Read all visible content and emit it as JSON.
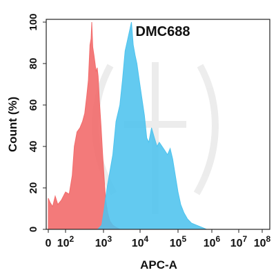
{
  "chart_data": {
    "type": "area",
    "title": "DMC688",
    "xlabel": "APC-A",
    "ylabel": "Count  (%)",
    "x_scale": "biexponential (log-like)",
    "xlim": [
      0,
      100000000
    ],
    "ylim": [
      0,
      100
    ],
    "grid": false,
    "legend": "none",
    "x_tick_labels": [
      {
        "value": 0,
        "base": "0",
        "exp": ""
      },
      {
        "value": 100,
        "base": "10",
        "exp": "2"
      },
      {
        "value": 1000,
        "base": "10",
        "exp": "3"
      },
      {
        "value": 10000,
        "base": "10",
        "exp": "4"
      },
      {
        "value": 100000,
        "base": "10",
        "exp": "5"
      },
      {
        "value": 1000000,
        "base": "10",
        "exp": "6"
      },
      {
        "value": 10000000,
        "base": "10",
        "exp": "7"
      },
      {
        "value": 100000000,
        "base": "10",
        "exp": "8"
      }
    ],
    "y_ticks": [
      0,
      20,
      40,
      60,
      80,
      100
    ],
    "series": [
      {
        "color": "#f26b6b",
        "points": [
          [
            0,
            15
          ],
          [
            10,
            13
          ],
          [
            25,
            11
          ],
          [
            40,
            16
          ],
          [
            55,
            12
          ],
          [
            75,
            14
          ],
          [
            100,
            18
          ],
          [
            125,
            17
          ],
          [
            150,
            26
          ],
          [
            170,
            40
          ],
          [
            200,
            47
          ],
          [
            240,
            49
          ],
          [
            280,
            52
          ],
          [
            320,
            56
          ],
          [
            360,
            64
          ],
          [
            400,
            72
          ],
          [
            440,
            89
          ],
          [
            470,
            92
          ],
          [
            490,
            100
          ],
          [
            520,
            88
          ],
          [
            560,
            84
          ],
          [
            600,
            80
          ],
          [
            640,
            76
          ],
          [
            680,
            78
          ],
          [
            720,
            74
          ],
          [
            780,
            62
          ],
          [
            860,
            50
          ],
          [
            950,
            36
          ],
          [
            1050,
            24
          ],
          [
            1150,
            14
          ],
          [
            1300,
            8
          ],
          [
            1500,
            4
          ],
          [
            1800,
            2
          ],
          [
            2200,
            1
          ],
          [
            2800,
            0
          ]
        ]
      },
      {
        "color": "#4dc3ee",
        "points": [
          [
            700,
            0
          ],
          [
            900,
            2
          ],
          [
            1050,
            10
          ],
          [
            1250,
            20
          ],
          [
            1500,
            28
          ],
          [
            1800,
            36
          ],
          [
            2200,
            52
          ],
          [
            2800,
            60
          ],
          [
            3300,
            72
          ],
          [
            3900,
            86
          ],
          [
            4500,
            91
          ],
          [
            5200,
            96
          ],
          [
            5800,
            100
          ],
          [
            6500,
            89
          ],
          [
            7300,
            84
          ],
          [
            8200,
            80
          ],
          [
            9500,
            72
          ],
          [
            11000,
            64
          ],
          [
            13000,
            55
          ],
          [
            15000,
            44
          ],
          [
            17000,
            42
          ],
          [
            20000,
            49
          ],
          [
            24000,
            44
          ],
          [
            28000,
            40
          ],
          [
            32000,
            42
          ],
          [
            38000,
            40
          ],
          [
            45000,
            38
          ],
          [
            53000,
            36
          ],
          [
            62000,
            39
          ],
          [
            72000,
            34
          ],
          [
            85000,
            26
          ],
          [
            100000,
            18
          ],
          [
            120000,
            12
          ],
          [
            150000,
            8
          ],
          [
            190000,
            5
          ],
          [
            250000,
            3
          ],
          [
            350000,
            2
          ],
          [
            500000,
            1
          ],
          [
            700000,
            0
          ]
        ]
      }
    ]
  }
}
